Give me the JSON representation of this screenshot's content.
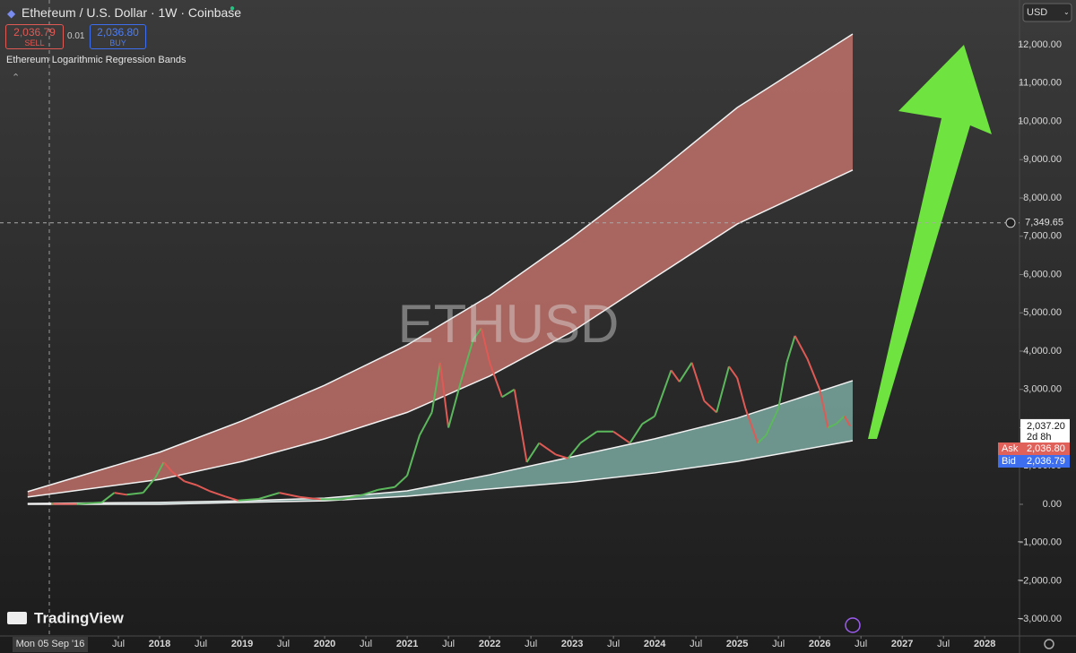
{
  "header": {
    "title": "Ethereum / U.S. Dollar · 1W · Coinbase",
    "sell_price": "2,036.79",
    "sell_label": "SELL",
    "spread": "0.01",
    "buy_price": "2,036.80",
    "buy_label": "BUY",
    "indicator": "Ethereum Logarithmic Regression Bands",
    "currency": "USD"
  },
  "brand": "TradingView",
  "chart_data": {
    "type": "line",
    "watermark": "ETHUSD",
    "up_color": "#5cb85c",
    "down_color": "#e05a55",
    "x": [
      2016.7,
      2017.0,
      2017.3,
      2017.45,
      2017.6,
      2017.8,
      2017.95,
      2018.05,
      2018.15,
      2018.3,
      2018.45,
      2018.6,
      2018.8,
      2018.95,
      2019.2,
      2019.45,
      2019.7,
      2019.95,
      2020.2,
      2020.45,
      2020.65,
      2020.85,
      2021.0,
      2021.15,
      2021.3,
      2021.4,
      2021.5,
      2021.65,
      2021.8,
      2021.9,
      2022.0,
      2022.15,
      2022.3,
      2022.45,
      2022.6,
      2022.8,
      2022.95,
      2023.1,
      2023.3,
      2023.5,
      2023.7,
      2023.85,
      2024.0,
      2024.2,
      2024.3,
      2024.45,
      2024.6,
      2024.75,
      2024.9,
      2025.0,
      2025.1,
      2025.25,
      2025.35,
      2025.5,
      2025.6,
      2025.7,
      2025.85,
      2026.0,
      2026.1,
      2026.2,
      2026.3,
      2026.37
    ],
    "values": [
      12,
      8,
      50,
      300,
      250,
      300,
      700,
      1100,
      850,
      600,
      500,
      350,
      200,
      100,
      140,
      300,
      190,
      130,
      130,
      240,
      380,
      450,
      750,
      1800,
      2400,
      3700,
      2000,
      3200,
      4300,
      4600,
      3700,
      2800,
      3000,
      1100,
      1600,
      1300,
      1200,
      1600,
      1900,
      1900,
      1600,
      2100,
      2300,
      3500,
      3200,
      3700,
      2700,
      2400,
      3600,
      3300,
      2500,
      1600,
      1800,
      2500,
      3700,
      4400,
      3800,
      3000,
      2000,
      2100,
      2300,
      2037
    ],
    "bands": [
      {
        "color": "#c8736b",
        "x": [
          2016.4,
          2018,
          2019,
          2020,
          2021,
          2022,
          2023,
          2024,
          2025,
          2026.4
        ],
        "upper": [
          330,
          1360,
          2180,
          3110,
          4160,
          5450,
          6970,
          8610,
          10360,
          12280
        ],
        "lower": [
          190,
          650,
          1120,
          1710,
          2400,
          3350,
          4510,
          5920,
          7320,
          8730
        ]
      },
      {
        "color": "#7fb0a8",
        "x": [
          2016.4,
          2018,
          2019,
          2020,
          2021,
          2022,
          2023,
          2024,
          2025,
          2026.4
        ],
        "upper": [
          20,
          50,
          90,
          160,
          350,
          770,
          1240,
          1710,
          2250,
          3230
        ],
        "lower": [
          0,
          0,
          50,
          90,
          210,
          400,
          580,
          820,
          1120,
          1660
        ]
      }
    ],
    "xlim": [
      2016.065,
      2028.4
    ],
    "xticks": [
      {
        "value": 2017.5,
        "label": "Jul"
      },
      2018,
      {
        "value": 2018.5,
        "label": "Jul"
      },
      2019,
      {
        "value": 2019.5,
        "label": "Jul"
      },
      2020,
      {
        "value": 2020.5,
        "label": "Jul"
      },
      2021,
      {
        "value": 2021.5,
        "label": "Jul"
      },
      2022,
      {
        "value": 2022.5,
        "label": "Jul"
      },
      2023,
      {
        "value": 2023.5,
        "label": "Jul"
      },
      2024,
      {
        "value": 2024.5,
        "label": "Jul"
      },
      2025,
      {
        "value": 2025.5,
        "label": "Jul"
      },
      2026,
      {
        "value": 2026.5,
        "label": "Jul"
      },
      2027,
      {
        "value": 2027.5,
        "label": "Jul"
      },
      2028
    ],
    "ylim": [
      -3439,
      13170
    ],
    "yticks": [
      {
        "value": -3000,
        "label": "−3,000.00"
      },
      {
        "value": -2000,
        "label": "−2,000.00"
      },
      {
        "value": -1000,
        "label": "−1,000.00"
      },
      {
        "value": 0,
        "label": "0.00"
      },
      {
        "value": 1000,
        "label": "1,000.00"
      },
      {
        "value": 2000,
        "label": "2,000.00"
      },
      {
        "value": 3000,
        "label": "3,000.00"
      },
      {
        "value": 4000,
        "label": "4,000.00"
      },
      {
        "value": 5000,
        "label": "5,000.00"
      },
      {
        "value": 6000,
        "label": "6,000.00"
      },
      {
        "value": 7000,
        "label": "7,000.00"
      },
      {
        "value": 8000,
        "label": "8,000.00"
      },
      {
        "value": 9000,
        "label": "9,000.00"
      },
      {
        "value": 10000,
        "label": "10,000.00"
      },
      {
        "value": 11000,
        "label": "11,000.00"
      },
      {
        "value": 12000,
        "label": "12,000.00"
      }
    ],
    "crosshair": {
      "value": 7349.65,
      "label": "7,349.65",
      "date": "Mon 05 Sep '16"
    },
    "last_price": {
      "value": 2037.2,
      "label": "2,037.20",
      "countdown": "2d 8h"
    },
    "ask": {
      "label": "Ask",
      "price": "2,036.80"
    },
    "bid": {
      "label": "Bid",
      "price": "2,036.79"
    }
  }
}
